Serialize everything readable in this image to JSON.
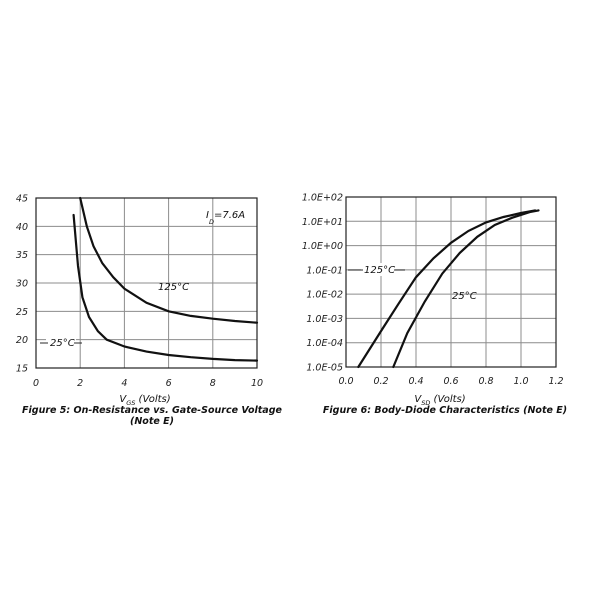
{
  "chart_data": [
    {
      "type": "line",
      "xlabel": {
        "main": "V",
        "sub": "GS",
        "rest": " (Volts)"
      },
      "ylabel": "",
      "xlim": [
        0,
        10
      ],
      "ylim": [
        15,
        45
      ],
      "x_ticks": [
        "0",
        "2",
        "4",
        "6",
        "8",
        "10"
      ],
      "y_ticks": [
        "15",
        "20",
        "25",
        "30",
        "35",
        "40",
        "45"
      ],
      "grid": true,
      "annotation": {
        "main": "I",
        "sub": "D",
        "rest": "=7.6A"
      },
      "caption_lines": [
        "Figure 5: On-Resistance vs. Gate-Source Voltage",
        "(Note E)"
      ],
      "series": [
        {
          "name": "125°C",
          "x": [
            2.0,
            2.3,
            2.6,
            3.0,
            3.5,
            4.0,
            5.0,
            6.0,
            7.0,
            8.0,
            9.0,
            10.0
          ],
          "y": [
            45.0,
            40.0,
            36.5,
            33.5,
            31.0,
            29.0,
            26.5,
            25.0,
            24.2,
            23.7,
            23.3,
            23.0
          ]
        },
        {
          "name": "25°C",
          "x": [
            1.7,
            1.9,
            2.1,
            2.4,
            2.8,
            3.2,
            4.0,
            5.0,
            6.0,
            7.0,
            8.0,
            9.0,
            10.0
          ],
          "y": [
            42.0,
            33.0,
            27.5,
            24.0,
            21.5,
            20.0,
            18.8,
            17.9,
            17.3,
            16.9,
            16.6,
            16.4,
            16.3
          ]
        }
      ]
    },
    {
      "type": "line",
      "log_y": true,
      "xlabel": {
        "main": "V",
        "sub": "SD",
        "rest": " (Volts)"
      },
      "ylabel": "",
      "xlim": [
        0.0,
        1.2
      ],
      "ylim": [
        1e-05,
        100
      ],
      "x_ticks": [
        "0.0",
        "0.2",
        "0.4",
        "0.6",
        "0.8",
        "1.0",
        "1.2"
      ],
      "y_ticks": [
        "1.0E-05",
        "1.0E-04",
        "1.0E-03",
        "1.0E-02",
        "1.0E-01",
        "1.0E+00",
        "1.0E+01",
        "1.0E+02"
      ],
      "grid": true,
      "caption_lines": [
        "Figure 6: Body-Diode Characteristics (Note E)"
      ],
      "series": [
        {
          "name": "125°C",
          "x": [
            0.07,
            0.2,
            0.3,
            0.4,
            0.5,
            0.6,
            0.7,
            0.8,
            0.9,
            1.0,
            1.08
          ],
          "y": [
            1e-05,
            0.0003,
            0.004,
            0.05,
            0.3,
            1.3,
            4.0,
            9.0,
            15.0,
            22.0,
            28.0
          ]
        },
        {
          "name": "25°C",
          "x": [
            0.27,
            0.35,
            0.45,
            0.55,
            0.65,
            0.75,
            0.85,
            0.95,
            1.05,
            1.1
          ],
          "y": [
            1e-05,
            0.00025,
            0.005,
            0.07,
            0.5,
            2.3,
            7.0,
            14.0,
            24.0,
            28.0
          ]
        }
      ]
    }
  ]
}
